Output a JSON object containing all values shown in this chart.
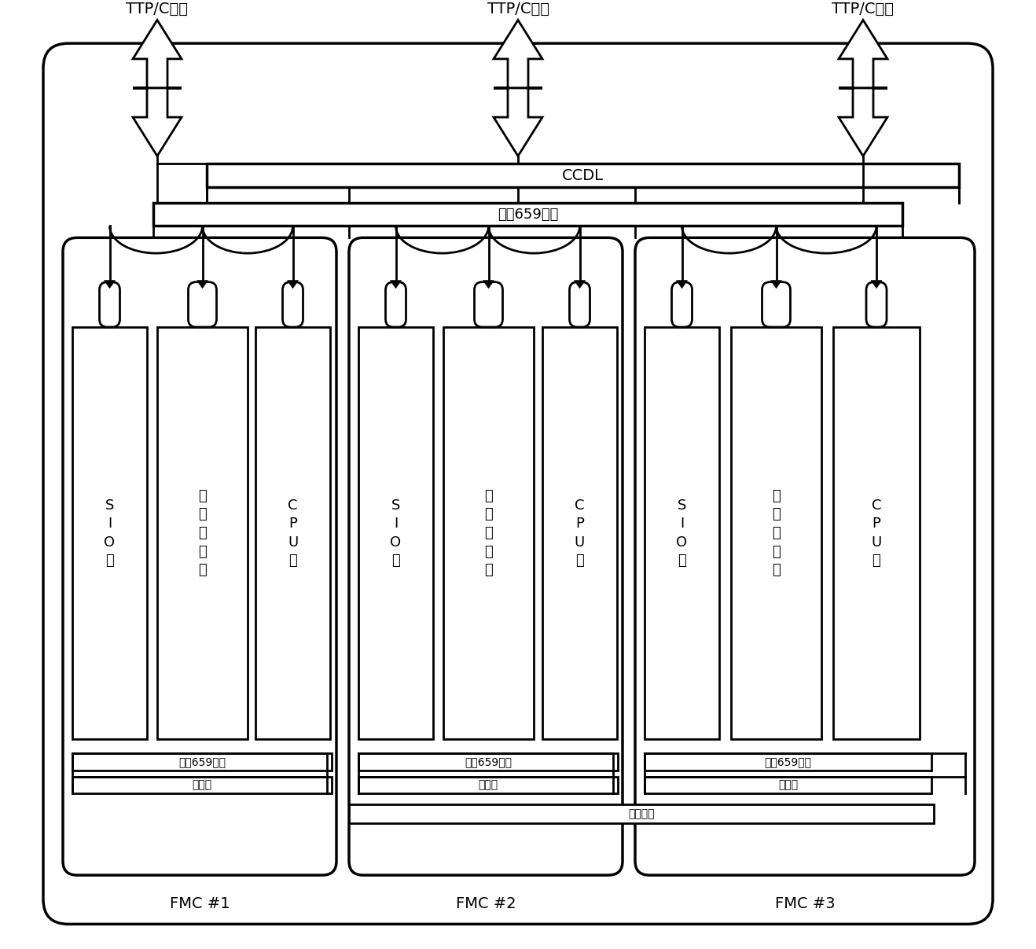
{
  "bg_color": "#ffffff",
  "border_color": "#000000",
  "ccdl_label": "CCDL",
  "bridge_label": "桥接659总线",
  "backplane_label": "背板电缆",
  "fmc_labels": [
    "FMC #1",
    "FMC #2",
    "FMC #3"
  ],
  "ttp_labels": [
    "TTP/C总线",
    "TTP/C总线",
    "TTP/C总线"
  ],
  "sio_label": "S\nI\nO\n板",
  "bus_label": "总\n线\n接\n口\n板",
  "cpu_label": "C\nP\nU\n板",
  "local_bus_label": "本地659总线",
  "power_label": "电源板",
  "lw": 2.0,
  "thick_lw": 2.5
}
